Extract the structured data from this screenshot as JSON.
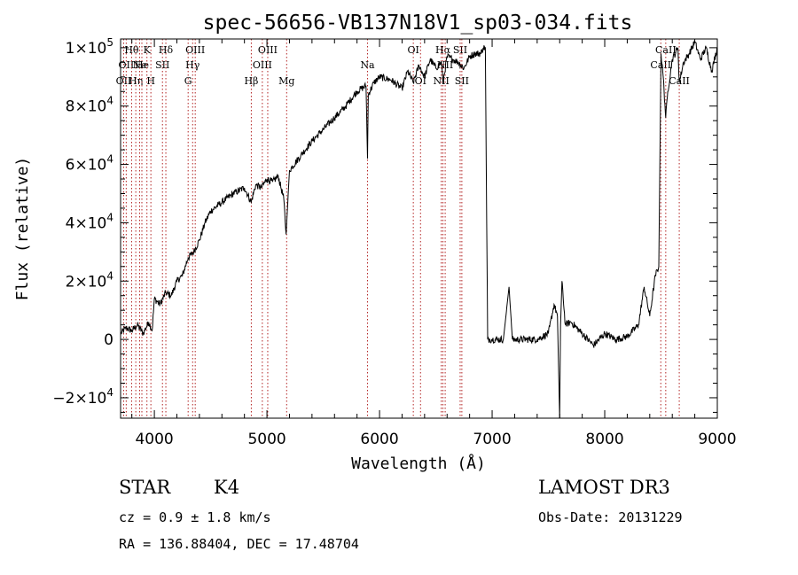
{
  "chart_data": {
    "type": "line",
    "title": "spec-56656-VB137N18V1_sp03-034.fits",
    "xlabel": "Wavelength (Å)",
    "ylabel": "Flux (relative)",
    "xlim": [
      3700,
      9000
    ],
    "ylim": [
      -27000,
      103000
    ],
    "x_ticks": [
      4000,
      5000,
      6000,
      7000,
      8000,
      9000
    ],
    "x_tick_labels": [
      "4000",
      "5000",
      "6000",
      "7000",
      "8000",
      "9000"
    ],
    "y_ticks": [
      {
        "value": -20000,
        "mantissa": "−2×10",
        "exp": "4"
      },
      {
        "value": 0,
        "mantissa": "0",
        "exp": ""
      },
      {
        "value": 20000,
        "mantissa": "2×10",
        "exp": "4"
      },
      {
        "value": 40000,
        "mantissa": "4×10",
        "exp": "4"
      },
      {
        "value": 60000,
        "mantissa": "6×10",
        "exp": "4"
      },
      {
        "value": 80000,
        "mantissa": "8×10",
        "exp": "4"
      },
      {
        "value": 100000,
        "mantissa": "1×10",
        "exp": "5"
      }
    ],
    "spectrum": {
      "name": "Flux",
      "x": [
        3700,
        3750,
        3800,
        3850,
        3900,
        3950,
        3980,
        4000,
        4050,
        4100,
        4150,
        4200,
        4250,
        4300,
        4350,
        4400,
        4450,
        4500,
        4600,
        4700,
        4800,
        4860,
        4900,
        4950,
        5000,
        5050,
        5100,
        5150,
        5170,
        5200,
        5300,
        5400,
        5500,
        5600,
        5700,
        5800,
        5880,
        5893,
        5900,
        5950,
        6000,
        6100,
        6200,
        6250,
        6300,
        6350,
        6400,
        6450,
        6500,
        6550,
        6563,
        6600,
        6650,
        6700,
        6750,
        6800,
        6850,
        6900,
        6920,
        6940,
        6960,
        6980,
        7000,
        7050,
        7100,
        7150,
        7180,
        7200,
        7250,
        7300,
        7400,
        7500,
        7550,
        7580,
        7600,
        7608,
        7620,
        7650,
        7700,
        7800,
        7900,
        8000,
        8100,
        8200,
        8300,
        8350,
        8400,
        8450,
        8480,
        8500,
        8520,
        8542,
        8560,
        8600,
        8650,
        8662,
        8700,
        8750,
        8800,
        8850,
        8900,
        8950,
        9000
      ],
      "y": [
        2000,
        4000,
        3000,
        5000,
        2000,
        6000,
        3000,
        14000,
        12000,
        16000,
        15000,
        20000,
        22000,
        28000,
        30000,
        34000,
        40000,
        44000,
        47000,
        50000,
        52000,
        47000,
        53000,
        52000,
        55000,
        54000,
        56000,
        48000,
        36000,
        58000,
        63000,
        68000,
        72000,
        76000,
        80000,
        85000,
        87000,
        62000,
        84000,
        88000,
        90000,
        89000,
        86000,
        92000,
        88000,
        94000,
        90000,
        96000,
        93000,
        95000,
        88000,
        97000,
        96000,
        95000,
        93000,
        97000,
        98000,
        98000,
        100000,
        100000,
        0,
        0,
        0,
        0,
        0,
        18000,
        0,
        0,
        0,
        0,
        0,
        2000,
        12000,
        8000,
        -27000,
        5000,
        20000,
        5000,
        6000,
        2000,
        -2000,
        2000,
        0,
        1000,
        5000,
        18000,
        8000,
        22000,
        25000,
        98000,
        90000,
        76000,
        85000,
        96000,
        100000,
        88000,
        95000,
        98000,
        102000,
        96000,
        100000,
        92000,
        100000
      ]
    },
    "lines": [
      {
        "wl": 3727,
        "row": 2,
        "label": "OII"
      },
      {
        "wl": 3750,
        "row": 1,
        "label": "OII"
      },
      {
        "wl": 3798,
        "row": 0,
        "label": "Hθ"
      },
      {
        "wl": 3835,
        "row": 2,
        "label": "Hη"
      },
      {
        "wl": 3869,
        "row": 1,
        "label": "Ne"
      },
      {
        "wl": 3889,
        "row": 1,
        "label": "He"
      },
      {
        "wl": 3934,
        "row": 0,
        "label": "K"
      },
      {
        "wl": 3969,
        "row": 2,
        "label": "H"
      },
      {
        "wl": 4072,
        "row": 1,
        "label": "SII"
      },
      {
        "wl": 4102,
        "row": 0,
        "label": "Hδ"
      },
      {
        "wl": 4300,
        "row": 2,
        "label": "G"
      },
      {
        "wl": 4340,
        "row": 1,
        "label": "Hγ"
      },
      {
        "wl": 4363,
        "row": 0,
        "label": "OIII"
      },
      {
        "wl": 4861,
        "row": 2,
        "label": "Hβ"
      },
      {
        "wl": 4959,
        "row": 1,
        "label": "OIII"
      },
      {
        "wl": 5007,
        "row": 0,
        "label": "OIII"
      },
      {
        "wl": 5175,
        "row": 2,
        "label": "Mg"
      },
      {
        "wl": 5893,
        "row": 1,
        "label": "Na"
      },
      {
        "wl": 6300,
        "row": 0,
        "label": "OI"
      },
      {
        "wl": 6364,
        "row": 2,
        "label": "OI"
      },
      {
        "wl": 6548,
        "row": 2,
        "label": "NII"
      },
      {
        "wl": 6563,
        "row": 0,
        "label": "Hα"
      },
      {
        "wl": 6583,
        "row": 1,
        "label": "NII"
      },
      {
        "wl": 6716,
        "row": 0,
        "label": "SII"
      },
      {
        "wl": 6731,
        "row": 2,
        "label": "SII"
      },
      {
        "wl": 8498,
        "row": 1,
        "label": "CaII"
      },
      {
        "wl": 8542,
        "row": 0,
        "label": "CaII"
      },
      {
        "wl": 8662,
        "row": 2,
        "label": "CaII"
      }
    ]
  },
  "info": {
    "class": "STAR",
    "subclass": "K4",
    "survey": "LAMOST DR3",
    "cz": "cz = 0.9 ± 1.8 km/s",
    "obs_date": "Obs-Date: 20131229",
    "coords": "RA = 136.88404, DEC =  17.48704"
  }
}
